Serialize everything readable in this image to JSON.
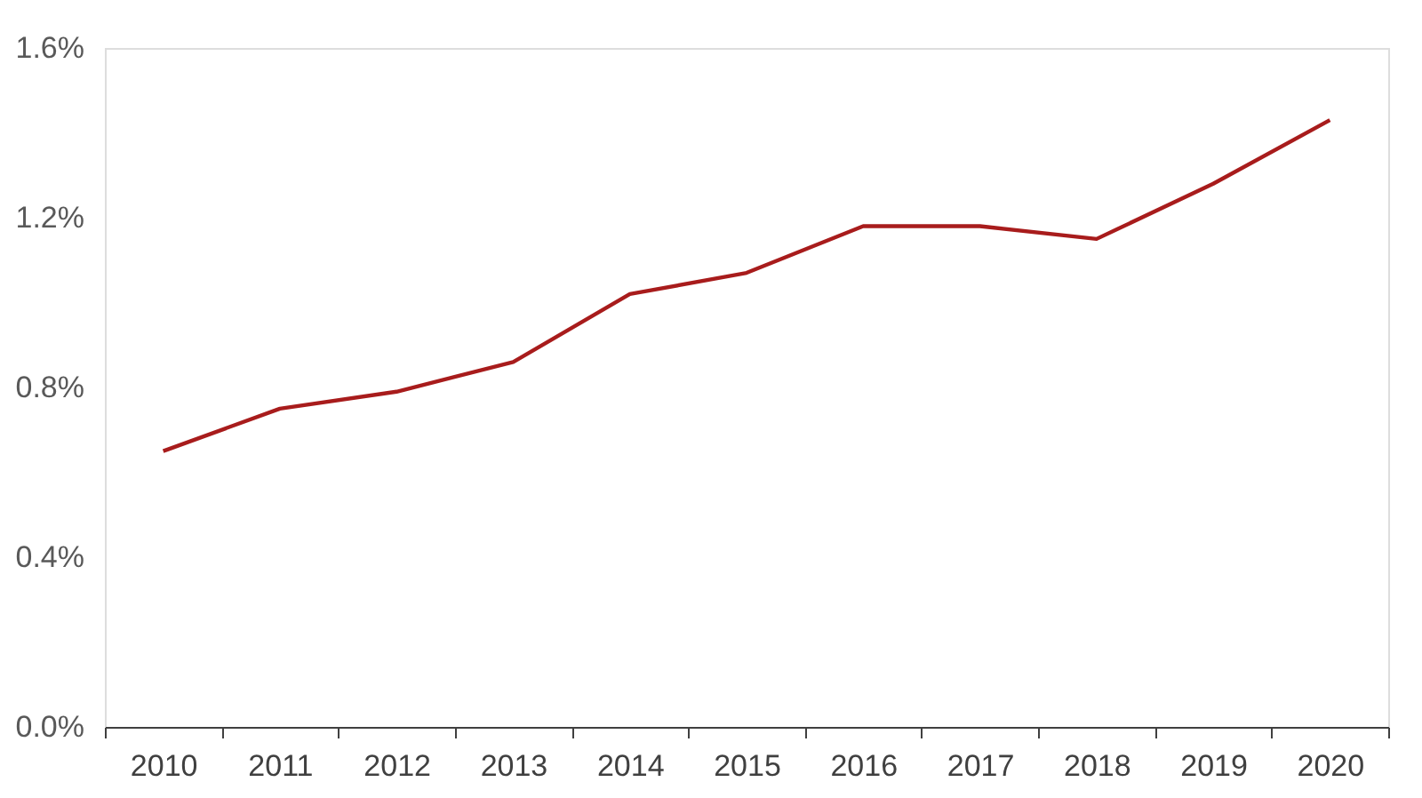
{
  "chart_data": {
    "type": "line",
    "categories": [
      "2010",
      "2011",
      "2012",
      "2013",
      "2014",
      "2015",
      "2016",
      "2017",
      "2018",
      "2019",
      "2020"
    ],
    "series": [
      {
        "color": "#a81c1c",
        "values": [
          0.65,
          0.75,
          0.79,
          0.86,
          1.02,
          1.07,
          1.18,
          1.18,
          1.15,
          1.28,
          1.43
        ]
      }
    ],
    "ylim": [
      0,
      1.6
    ],
    "yticks": [
      {
        "value": 0,
        "label": "0.0%"
      },
      {
        "value": 0.4,
        "label": "0.4%"
      },
      {
        "value": 0.8,
        "label": "0.8%"
      },
      {
        "value": 1.2,
        "label": "1.2%"
      },
      {
        "value": 1.6,
        "label": "1.6%"
      }
    ],
    "grid": false,
    "marker": "none",
    "line_style": "solid"
  }
}
